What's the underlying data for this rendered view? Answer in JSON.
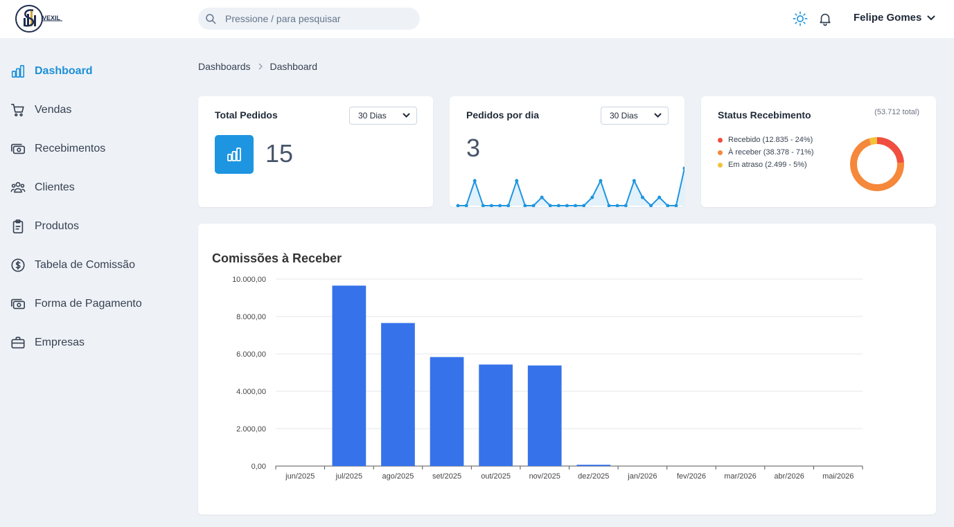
{
  "app": {
    "brand": "VEXIL"
  },
  "header": {
    "search_placeholder": "Pressione / para pesquisar",
    "user_name": "Felipe Gomes"
  },
  "sidebar": {
    "items": [
      {
        "label": "Dashboard",
        "icon": "bar-chart-icon",
        "active": true
      },
      {
        "label": "Vendas",
        "icon": "cart-icon"
      },
      {
        "label": "Recebimentos",
        "icon": "cash-icon"
      },
      {
        "label": "Clientes",
        "icon": "users-icon"
      },
      {
        "label": "Produtos",
        "icon": "clipboard-icon"
      },
      {
        "label": "Tabela de Comissão",
        "icon": "dollar-icon"
      },
      {
        "label": "Forma de Pagamento",
        "icon": "cash-icon"
      },
      {
        "label": "Empresas",
        "icon": "briefcase-icon"
      }
    ]
  },
  "breadcrumb": {
    "items": [
      "Dashboards",
      "Dashboard"
    ]
  },
  "cards": {
    "total_pedidos": {
      "title": "Total Pedidos",
      "period": "30 Dias",
      "value": "15"
    },
    "pedidos_dia": {
      "title": "Pedidos por dia",
      "period": "30 Dias",
      "value": "3",
      "sparkline": [
        0,
        0,
        3,
        0,
        0,
        0,
        0,
        3,
        0,
        0,
        1,
        0,
        0,
        0,
        0,
        0,
        1,
        3,
        0,
        0,
        0,
        3,
        1,
        0,
        1,
        0,
        0,
        4.5
      ],
      "color": "#1e95e0"
    },
    "status": {
      "title": "Status Recebimento",
      "total_note": "(53.712 total)",
      "legend": [
        {
          "label": "Recebido (12.835 - 24%)",
          "color": "#f04e3e",
          "pct": 24
        },
        {
          "label": "À receber (38.378 - 71%)",
          "color": "#f5883a",
          "pct": 71
        },
        {
          "label": "Em atraso (2.499 - 5%)",
          "color": "#f2c23a",
          "pct": 5
        }
      ]
    }
  },
  "chart_data": {
    "type": "bar",
    "title": "Comissões à Receber",
    "categories": [
      "jun/2025",
      "jul/2025",
      "ago/2025",
      "set/2025",
      "out/2025",
      "nov/2025",
      "dez/2025",
      "jan/2026",
      "fev/2026",
      "mar/2026",
      "abr/2026",
      "mai/2026"
    ],
    "values": [
      0,
      9650,
      7650,
      5830,
      5430,
      5380,
      70,
      0,
      0,
      0,
      0,
      0
    ],
    "ylim": [
      0,
      10000
    ],
    "yticks": [
      0,
      2000,
      4000,
      6000,
      8000,
      10000
    ],
    "ytick_labels": [
      "0,00",
      "2.000,00",
      "4.000,00",
      "6.000,00",
      "8.000,00",
      "10.000,00"
    ],
    "color": "#3672ea",
    "grid": true
  }
}
